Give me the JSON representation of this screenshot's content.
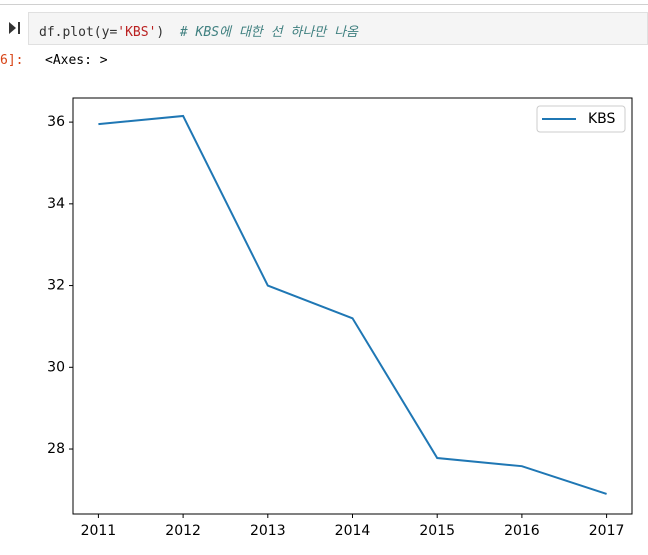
{
  "cell": {
    "code_parts": [
      "df.plot(y=",
      "'KBS'",
      ")"
    ],
    "comment": "# KBS에 대한 선 하나만 나옴",
    "output_prompt": "6]:",
    "output": "<Axes: >"
  },
  "chart_data": {
    "type": "line",
    "x": [
      2011,
      2012,
      2013,
      2014,
      2015,
      2016,
      2017
    ],
    "series": [
      {
        "name": "KBS",
        "color": "#1f77b4",
        "values": [
          35.95,
          36.15,
          32.0,
          31.2,
          27.78,
          27.58,
          26.9
        ]
      }
    ],
    "xlim": [
      2010.7,
      2017.3
    ],
    "xticks": [
      2011,
      2012,
      2013,
      2014,
      2015,
      2016,
      2017
    ],
    "ylim": [
      26.41,
      36.59
    ],
    "yticks": [
      28,
      30,
      32,
      34,
      36
    ],
    "legend": "upper right",
    "grid": false
  }
}
